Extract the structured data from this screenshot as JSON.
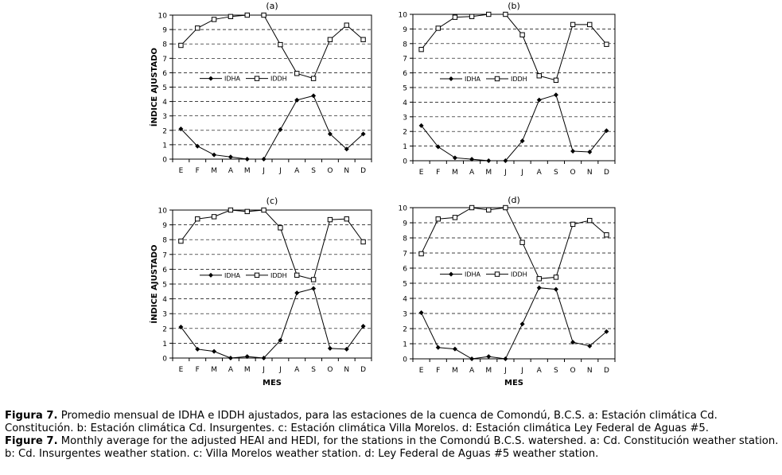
{
  "caption": {
    "es_label": "Figura 7.",
    "es_text": " Promedio mensual de IDHA e IDDH ajustados, para las estaciones de la cuenca de Comondú, B.C.S. a: Estación climática Cd. Constitución. b: Estación climática Cd. Insurgentes. c: Estación climática Villa Morelos. d: Estación climática Ley Federal de Aguas #5.",
    "en_label": "Figure 7.",
    "en_text": " Monthly average for the adjusted HEAI and HEDI, for the stations in the Comondú B.C.S. watershed. a: Cd. Constitución weather station. b: Cd. Insurgentes weather station. c: Villa Morelos weather station. d: Ley Federal de Aguas #5 weather station."
  },
  "chart_data": [
    {
      "type": "line",
      "title": "(a)",
      "xlabel": "",
      "ylabel": "ÍNDICE AJUSTADO",
      "categories": [
        "E",
        "F",
        "M",
        "A",
        "M",
        "J",
        "J",
        "A",
        "S",
        "O",
        "N",
        "D"
      ],
      "ylim": [
        0,
        10
      ],
      "yticks": [
        "0",
        "1",
        "2",
        "3",
        "4",
        "5",
        "6",
        "7",
        "8",
        "9",
        "10"
      ],
      "grid": "horizontal dashed",
      "legend": "center-left",
      "series": [
        {
          "name": "IDHA",
          "marker": "diamond-filled",
          "values": [
            2.1,
            0.9,
            0.3,
            0.15,
            0.0,
            0.0,
            2.05,
            4.1,
            4.4,
            1.75,
            0.7,
            1.75
          ]
        },
        {
          "name": "IDDH",
          "marker": "square-open",
          "values": [
            7.9,
            9.1,
            9.7,
            9.9,
            10.0,
            10.0,
            7.95,
            5.95,
            5.6,
            8.3,
            9.3,
            8.3
          ]
        }
      ]
    },
    {
      "type": "line",
      "title": "(b)",
      "xlabel": "",
      "ylabel": "",
      "categories": [
        "E",
        "F",
        "M",
        "A",
        "M",
        "J",
        "J",
        "A",
        "S",
        "O",
        "N",
        "D"
      ],
      "ylim": [
        0,
        10
      ],
      "yticks": [
        "0",
        "1",
        "2",
        "3",
        "4",
        "5",
        "6",
        "7",
        "8",
        "9",
        "10"
      ],
      "grid": "horizontal dashed",
      "legend": "center-left",
      "series": [
        {
          "name": "IDHA",
          "marker": "diamond-filled",
          "values": [
            2.4,
            0.95,
            0.2,
            0.1,
            0.0,
            0.0,
            1.35,
            4.15,
            4.5,
            0.65,
            0.6,
            2.05
          ]
        },
        {
          "name": "IDDH",
          "marker": "square-open",
          "values": [
            7.6,
            9.05,
            9.8,
            9.85,
            10.0,
            10.0,
            8.6,
            5.8,
            5.5,
            9.3,
            9.3,
            7.95
          ]
        }
      ]
    },
    {
      "type": "line",
      "title": "(c)",
      "xlabel": "MES",
      "ylabel": "ÍNDICE AJUSTADO",
      "categories": [
        "E",
        "F",
        "M",
        "A",
        "M",
        "J",
        "J",
        "A",
        "S",
        "O",
        "N",
        "D"
      ],
      "ylim": [
        0,
        10
      ],
      "yticks": [
        "0",
        "1",
        "2",
        "3",
        "4",
        "5",
        "6",
        "7",
        "8",
        "9",
        "10"
      ],
      "grid": "horizontal dashed",
      "legend": "center-left",
      "series": [
        {
          "name": "IDHA",
          "marker": "diamond-filled",
          "values": [
            2.1,
            0.6,
            0.45,
            0.0,
            0.1,
            0.0,
            1.2,
            4.4,
            4.7,
            0.65,
            0.6,
            2.15
          ]
        },
        {
          "name": "IDDH",
          "marker": "square-open",
          "values": [
            7.9,
            9.4,
            9.55,
            10.0,
            9.9,
            10.0,
            8.8,
            5.6,
            5.3,
            9.35,
            9.4,
            7.85
          ]
        }
      ]
    },
    {
      "type": "line",
      "title": "(d)",
      "xlabel": "MES",
      "ylabel": "",
      "categories": [
        "E",
        "F",
        "M",
        "A",
        "M",
        "J",
        "J",
        "A",
        "S",
        "O",
        "N",
        "D"
      ],
      "ylim": [
        0,
        10
      ],
      "yticks": [
        "0",
        "1",
        "2",
        "3",
        "4",
        "5",
        "6",
        "7",
        "8",
        "9",
        "10"
      ],
      "grid": "horizontal dashed",
      "legend": "center-left",
      "series": [
        {
          "name": "IDHA",
          "marker": "diamond-filled",
          "values": [
            3.05,
            0.75,
            0.65,
            0.0,
            0.15,
            0.0,
            2.3,
            4.7,
            4.6,
            1.1,
            0.85,
            1.8
          ]
        },
        {
          "name": "IDDH",
          "marker": "square-open",
          "values": [
            6.95,
            9.25,
            9.35,
            10.0,
            9.85,
            10.0,
            7.7,
            5.3,
            5.4,
            8.9,
            9.15,
            8.2
          ]
        }
      ]
    }
  ]
}
